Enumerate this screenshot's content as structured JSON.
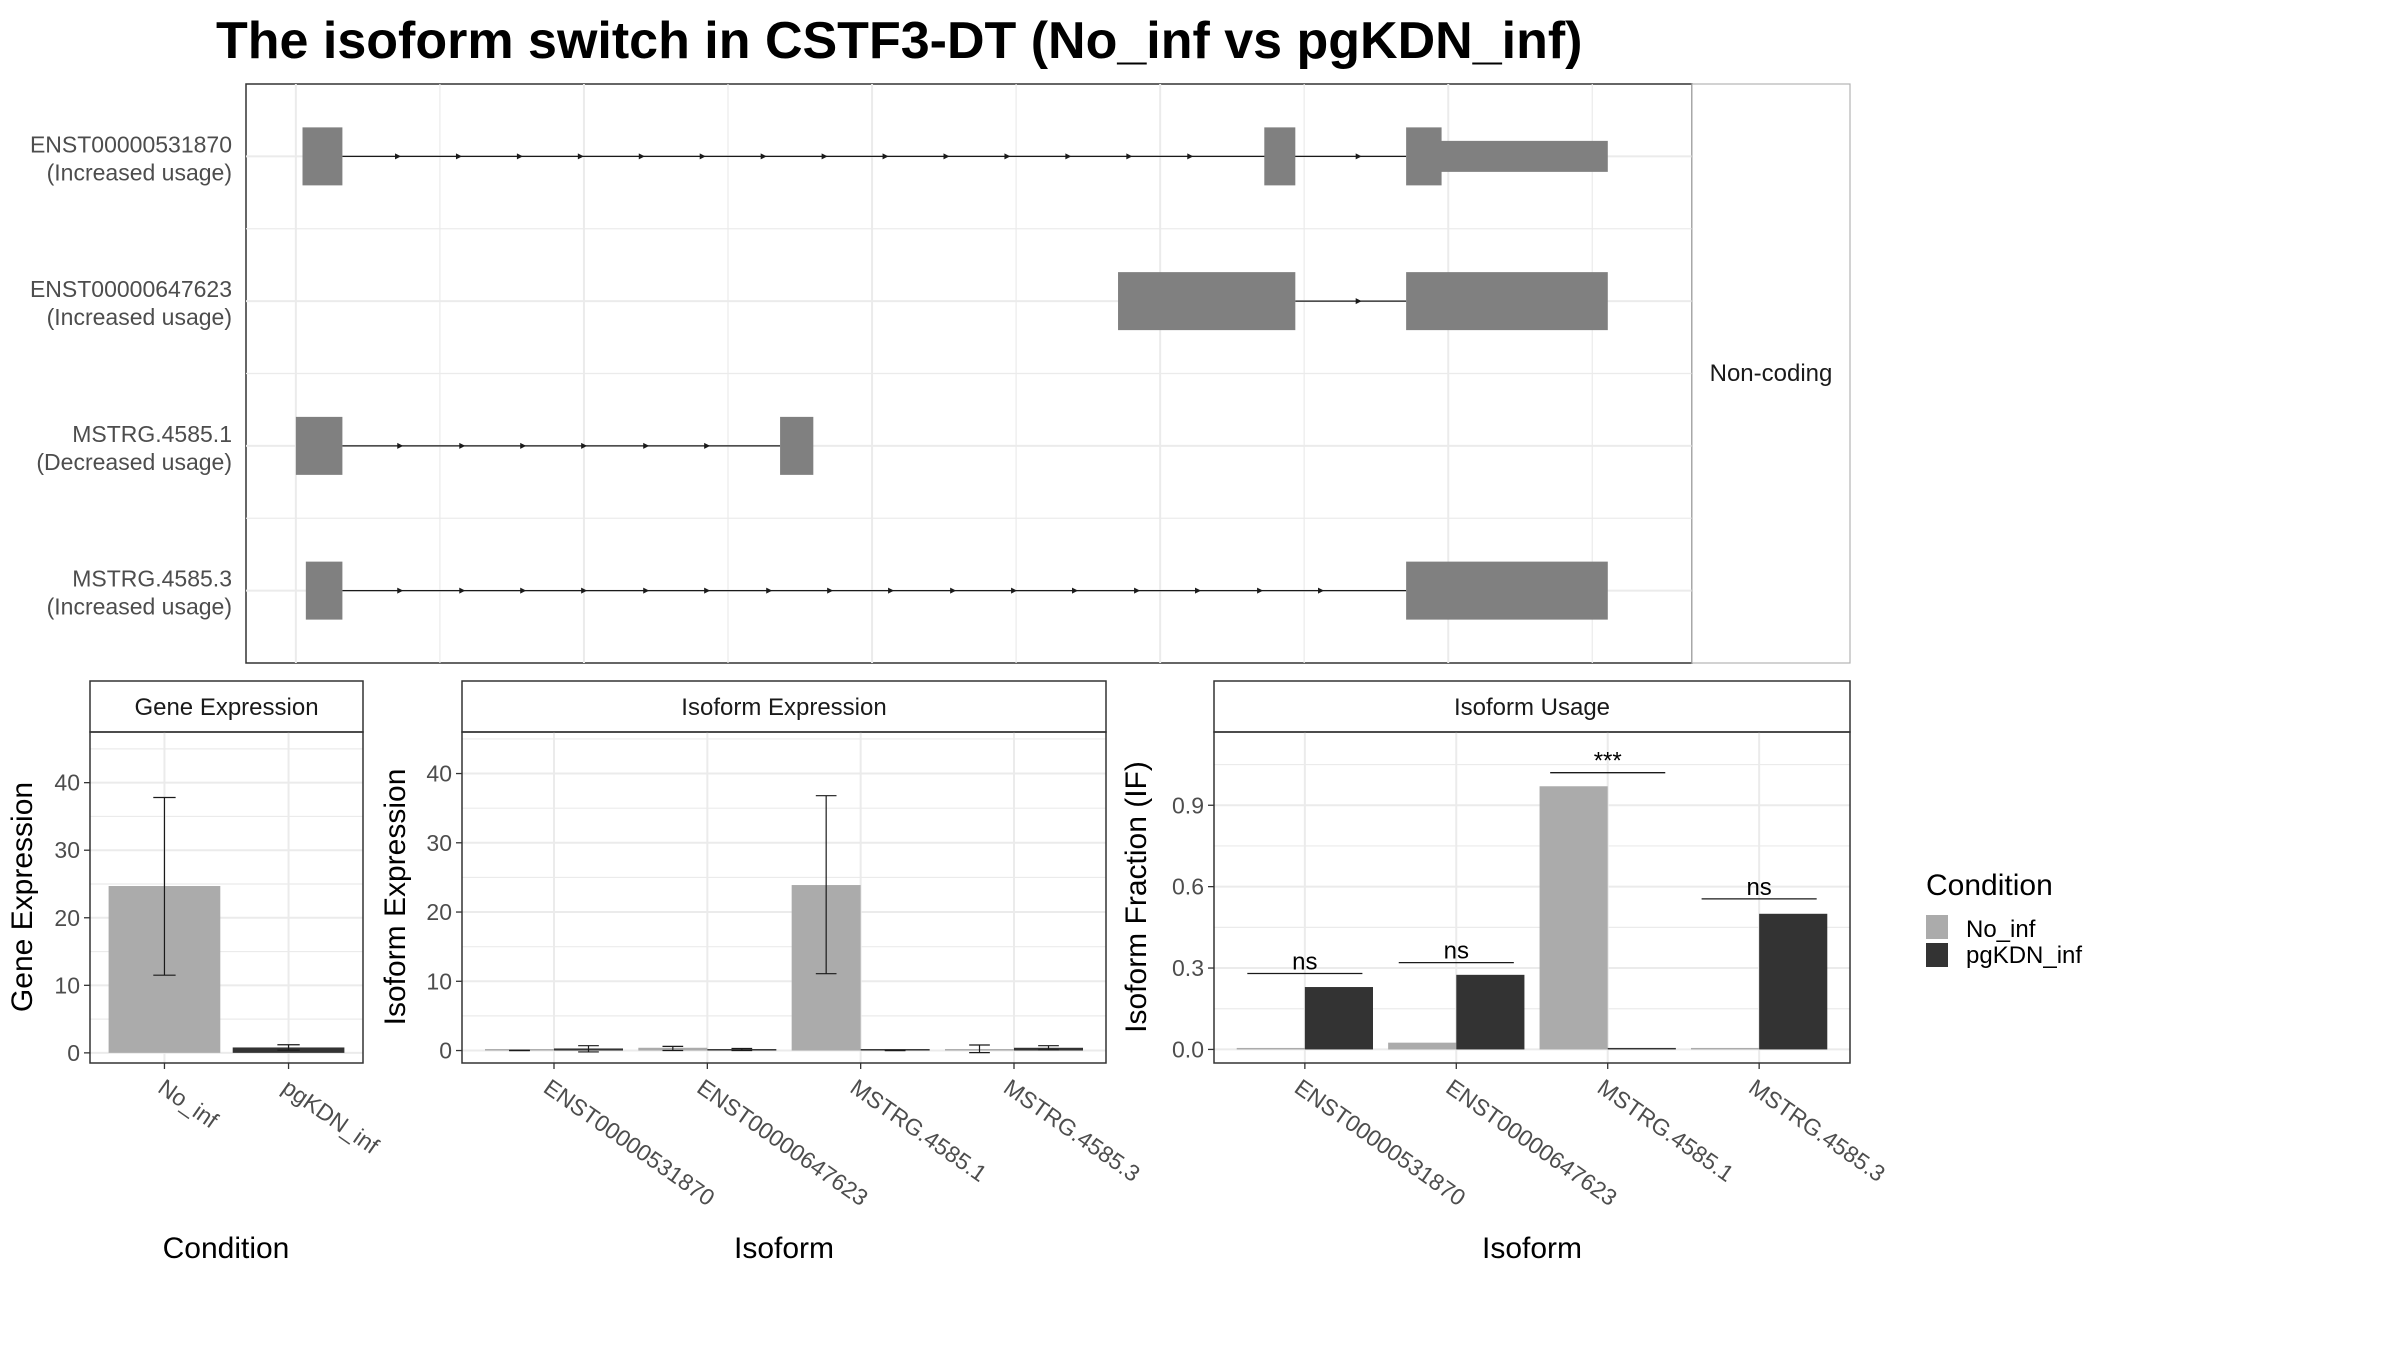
{
  "title": "The isoform switch in CSTF3-DT (No_inf vs pgKDN_inf)",
  "colors": {
    "no_inf": "#ABABAB",
    "pgkdn_inf": "#333333",
    "exon": "#808080",
    "grid": "#EBEBEB",
    "border": "#333333",
    "strip_border": "#B3B3B3"
  },
  "chart_data": [
    {
      "type": "gene-structure",
      "panel_label": "Non-coding",
      "tracks": [
        {
          "name": "ENST00000531870",
          "label": "(Increased usage)",
          "exons": [
            [
              0.6,
              4.2
            ],
            [
              87.4,
              90.2
            ],
            [
              100.2,
              103.4
            ]
          ],
          "utr_tail": [
            103.4,
            118.4
          ],
          "arrows": [
            9.4,
            14.9,
            20.4,
            25.9,
            31.4,
            36.9,
            42.4,
            47.9,
            53.4,
            58.9,
            64.4,
            69.9,
            75.4,
            80.9,
            96.1
          ]
        },
        {
          "name": "ENST00000647623",
          "label": "(Increased usage)",
          "exons": [
            [
              74.2,
              90.2
            ],
            [
              100.2,
              118.4
            ]
          ],
          "utr_tail": null,
          "arrows": [
            96.1
          ]
        },
        {
          "name": "MSTRG.4585.1",
          "label": "(Decreased usage)",
          "exons": [
            [
              0.0,
              4.2
            ],
            [
              43.7,
              46.7
            ]
          ],
          "utr_tail": null,
          "arrows": [
            9.6,
            15.2,
            20.7,
            26.2,
            31.8,
            37.3
          ]
        },
        {
          "name": "MSTRG.4585.3",
          "label": "(Increased usage)",
          "exons": [
            [
              0.9,
              4.2
            ],
            [
              100.2,
              118.4
            ]
          ],
          "utr_tail": null,
          "arrows": [
            9.6,
            15.2,
            20.7,
            26.2,
            31.8,
            37.3,
            42.9,
            48.4,
            53.9,
            59.5,
            65.0,
            70.5,
            76.1,
            81.6,
            87.2,
            92.7
          ]
        }
      ]
    },
    {
      "type": "bar",
      "title": "Gene Expression",
      "xlabel": "Condition",
      "ylabel": "Gene Expression",
      "ylim": [
        -1.5,
        47.5
      ],
      "yticks": [
        "0",
        "10",
        "20",
        "30",
        "40"
      ],
      "categories": [
        "No_inf",
        "pgKDN_inf"
      ],
      "values": [
        24.7,
        0.8
      ],
      "errors": [
        [
          11.5,
          37.8
        ],
        [
          0.4,
          1.2
        ]
      ]
    },
    {
      "type": "bar",
      "title": "Isoform Expression",
      "xlabel": "Isoform",
      "ylabel": "Isoform Expression",
      "ylim": [
        -1.8,
        46.0
      ],
      "yticks": [
        "0",
        "10",
        "20",
        "30",
        "40"
      ],
      "categories": [
        "ENST00000531870",
        "ENST00000647623",
        "MSTRG.4585.1",
        "MSTRG.4585.3"
      ],
      "series": [
        {
          "name": "No_inf",
          "values": [
            0.0,
            0.4,
            23.9,
            0.2
          ]
        },
        {
          "name": "pgKDN_inf",
          "values": [
            0.3,
            0.2,
            0.0,
            0.4
          ]
        }
      ],
      "errors": [
        [
          [
            0.0,
            0.0
          ],
          [
            0.0,
            0.6
          ],
          [
            11.1,
            36.8
          ],
          [
            -0.3,
            0.8
          ]
        ],
        [
          [
            -0.2,
            0.7
          ],
          [
            0.0,
            0.3
          ],
          [
            0.0,
            0.0
          ],
          [
            0.1,
            0.7
          ]
        ]
      ]
    },
    {
      "type": "bar",
      "title": "Isoform Usage",
      "xlabel": "Isoform",
      "ylabel": "Isoform Fraction (IF)",
      "ylim": [
        -0.05,
        1.17
      ],
      "yticks": [
        "0.0",
        "0.3",
        "0.6",
        "0.9"
      ],
      "categories": [
        "ENST00000531870",
        "ENST00000647623",
        "MSTRG.4585.1",
        "MSTRG.4585.3"
      ],
      "series": [
        {
          "name": "No_inf",
          "values": [
            0.0,
            0.025,
            0.97,
            0.0
          ]
        },
        {
          "name": "pgKDN_inf",
          "values": [
            0.23,
            0.275,
            0.0,
            0.5
          ]
        }
      ],
      "annotations": [
        {
          "text": "ns",
          "y": 0.28
        },
        {
          "text": "ns",
          "y": 0.32
        },
        {
          "text": "***",
          "y": 1.02
        },
        {
          "text": "ns",
          "y": 0.555
        }
      ]
    }
  ],
  "legend": {
    "title": "Condition",
    "entries": [
      "No_inf",
      "pgKDN_inf"
    ]
  }
}
